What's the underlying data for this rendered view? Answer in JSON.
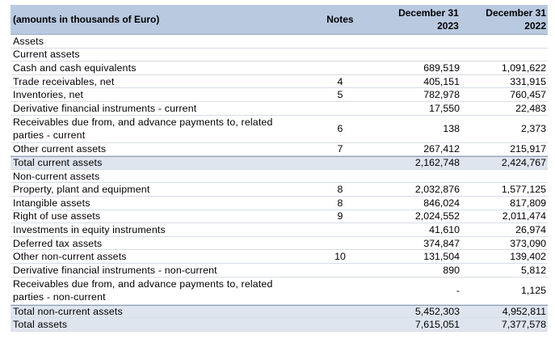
{
  "header": {
    "description": "(amounts in thousands of Euro)",
    "notes": "Notes",
    "y1_line1": "December 31",
    "y1_line2": "2023",
    "y2_line1": "December 31",
    "y2_line2": "2022"
  },
  "rows": [
    {
      "label": "Assets",
      "note": "",
      "y2023": "",
      "y2022": ""
    },
    {
      "label": "Current assets",
      "note": "",
      "y2023": "",
      "y2022": ""
    },
    {
      "label": "Cash and cash equivalents",
      "note": "",
      "y2023": "689,519",
      "y2022": "1,091,622"
    },
    {
      "label": "Trade receivables, net",
      "note": "4",
      "y2023": "405,151",
      "y2022": "331,915"
    },
    {
      "label": "Inventories, net",
      "note": "5",
      "y2023": "782,978",
      "y2022": "760,457"
    },
    {
      "label": "Derivative financial instruments - current",
      "note": "",
      "y2023": "17,550",
      "y2022": "22,483"
    },
    {
      "label": "Receivables due from, and advance payments to, related parties - current",
      "note": "6",
      "y2023": "138",
      "y2022": "2,373"
    },
    {
      "label": "Other current assets",
      "note": "7",
      "y2023": "267,412",
      "y2022": "215,917"
    },
    {
      "label": "Total current assets",
      "note": "",
      "y2023": "2,162,748",
      "y2022": "2,424,767"
    },
    {
      "label": "Non-current assets",
      "note": "",
      "y2023": "",
      "y2022": ""
    },
    {
      "label": "Property, plant and equipment",
      "note": "8",
      "y2023": "2,032,876",
      "y2022": "1,577,125"
    },
    {
      "label": "Intangible assets",
      "note": "8",
      "y2023": "846,024",
      "y2022": "817,809"
    },
    {
      "label": "Right of use assets",
      "note": "9",
      "y2023": "2,024,552",
      "y2022": "2,011,474"
    },
    {
      "label": "Investments in equity instruments",
      "note": "",
      "y2023": "41,610",
      "y2022": "26,974"
    },
    {
      "label": "Deferred tax assets",
      "note": "",
      "y2023": "374,847",
      "y2022": "373,090"
    },
    {
      "label": "Other non-current assets",
      "note": "10",
      "y2023": "131,504",
      "y2022": "139,402"
    },
    {
      "label": "Derivative financial instruments - non-current",
      "note": "",
      "y2023": "890",
      "y2022": "5,812"
    },
    {
      "label": "Receivables due from, and advance payments to, related parties - non-current",
      "note": "",
      "y2023": "-",
      "y2022": "1,125"
    },
    {
      "label": "Total non-current assets",
      "note": "",
      "y2023": "5,452,303",
      "y2022": "4,952,811"
    },
    {
      "label": "Total assets",
      "note": "",
      "y2023": "7,615,051",
      "y2022": "7,377,578"
    }
  ]
}
